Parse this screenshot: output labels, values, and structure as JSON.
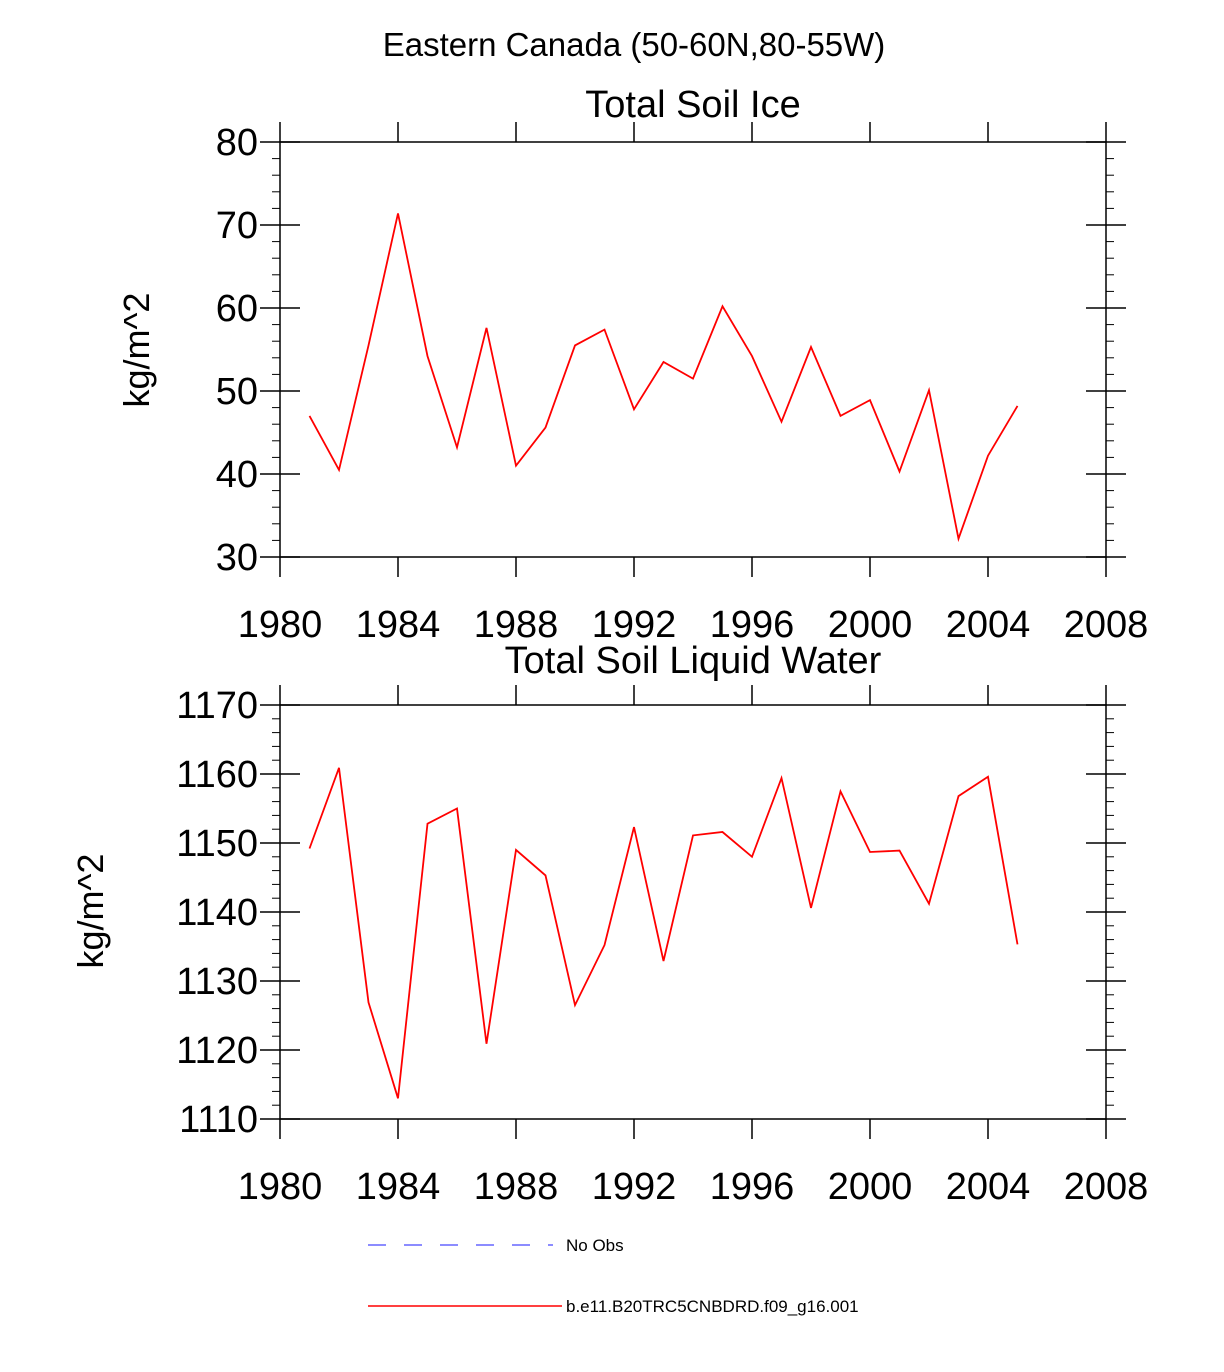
{
  "figure": {
    "title": "Eastern Canada (50-60N,80-55W)",
    "colors": {
      "series": "#ff0000",
      "no_obs": "#6666ff",
      "axes": "#000000"
    }
  },
  "legend": {
    "entries": [
      {
        "label": "No Obs",
        "style": "dashed",
        "color": "#6666ff"
      },
      {
        "label": "b.e11.B20TRC5CNBDRD.f09_g16.001",
        "style": "solid",
        "color": "#ff0000"
      }
    ],
    "placement": "bottom-center"
  },
  "chart_data": [
    {
      "type": "line",
      "title": "Total Soil Ice",
      "xlabel": "",
      "ylabel": "kg/m^2",
      "xlim": [
        1980,
        2008
      ],
      "ylim": [
        30,
        80
      ],
      "xticks": [
        1980,
        1984,
        1988,
        1992,
        1996,
        2000,
        2004,
        2008
      ],
      "yticks": [
        30,
        40,
        50,
        60,
        70,
        80
      ],
      "grid": false,
      "series": [
        {
          "name": "b.e11.B20TRC5CNBDRD.f09_g16.001",
          "color": "#ff0000",
          "x": [
            1981,
            1982,
            1983,
            1984,
            1985,
            1986,
            1987,
            1988,
            1989,
            1990,
            1991,
            1992,
            1993,
            1994,
            1995,
            1996,
            1997,
            1998,
            1999,
            2000,
            2001,
            2002,
            2003,
            2004,
            2005
          ],
          "y": [
            47.0,
            40.5,
            55.5,
            71.4,
            54.2,
            43.2,
            57.6,
            41.0,
            45.6,
            55.5,
            57.4,
            47.8,
            53.5,
            51.5,
            60.2,
            54.2,
            46.3,
            55.3,
            47.0,
            48.9,
            40.3,
            50.1,
            32.2,
            42.2,
            48.2
          ]
        }
      ]
    },
    {
      "type": "line",
      "title": "Total Soil Liquid Water",
      "xlabel": "",
      "ylabel": "kg/m^2",
      "xlim": [
        1980,
        2008
      ],
      "ylim": [
        1110,
        1170
      ],
      "xticks": [
        1980,
        1984,
        1988,
        1992,
        1996,
        2000,
        2004,
        2008
      ],
      "yticks": [
        1110,
        1120,
        1130,
        1140,
        1150,
        1160,
        1170
      ],
      "grid": false,
      "series": [
        {
          "name": "b.e11.B20TRC5CNBDRD.f09_g16.001",
          "color": "#ff0000",
          "x": [
            1981,
            1982,
            1983,
            1984,
            1985,
            1986,
            1987,
            1988,
            1989,
            1990,
            1991,
            1992,
            1993,
            1994,
            1995,
            1996,
            1997,
            1998,
            1999,
            2000,
            2001,
            2002,
            2003,
            2004,
            2005
          ],
          "y": [
            1149.2,
            1160.9,
            1126.9,
            1113.0,
            1152.8,
            1155.0,
            1120.9,
            1149.0,
            1145.3,
            1126.5,
            1135.2,
            1152.3,
            1132.9,
            1151.1,
            1151.6,
            1148.0,
            1159.4,
            1140.6,
            1157.5,
            1148.7,
            1148.9,
            1141.2,
            1156.8,
            1159.6,
            1135.3
          ]
        }
      ]
    }
  ]
}
